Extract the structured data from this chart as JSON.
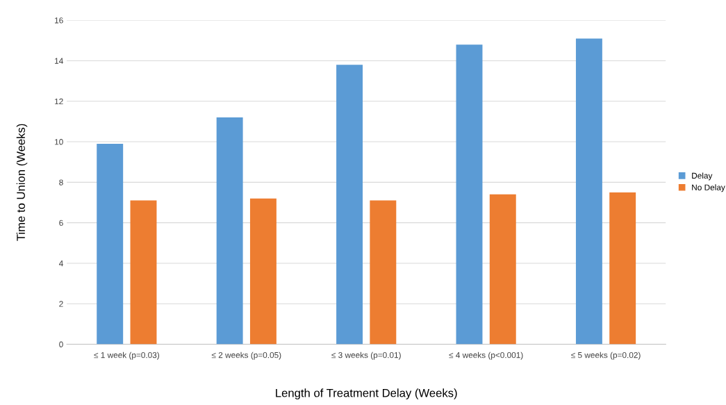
{
  "chart_data": {
    "type": "bar",
    "xlabel": "Length of Treatment Delay (Weeks)",
    "ylabel": "Time to Union (Weeks)",
    "categories": [
      "≤ 1 week (p=0.03)",
      "≤ 2 weeks (p=0.05)",
      "≤ 3 weeks (p=0.01)",
      "≤ 4 weeks (p<0.001)",
      "≤ 5 weeks (p=0.02)"
    ],
    "series": [
      {
        "name": "Delay",
        "color": "#5b9bd5",
        "values": [
          9.9,
          11.2,
          13.8,
          14.8,
          15.1
        ]
      },
      {
        "name": "No Delay",
        "color": "#ed7d31",
        "values": [
          7.1,
          7.2,
          7.1,
          7.4,
          7.5
        ]
      }
    ],
    "ylim": [
      0,
      16
    ],
    "yticks": [
      0,
      2,
      4,
      6,
      8,
      10,
      12,
      14,
      16
    ],
    "grid": "y",
    "legend": "right"
  }
}
